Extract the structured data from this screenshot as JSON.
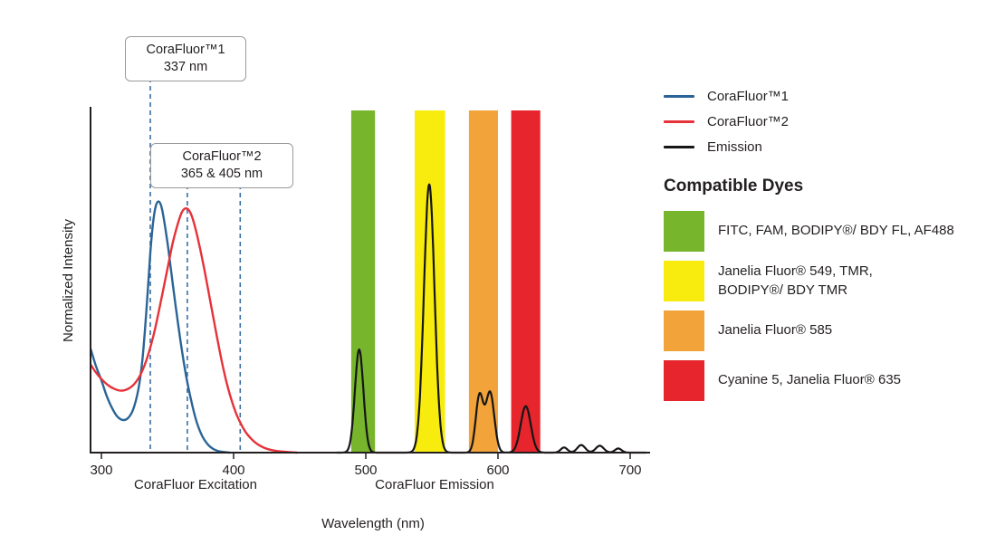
{
  "chart_data": {
    "type": "line",
    "title": "",
    "xlabel": "Wavelength (nm)",
    "ylabel": "Normalized Intensity",
    "x_ticks": [
      300,
      400,
      500,
      600,
      700
    ],
    "x_range": [
      292,
      715
    ],
    "y_range": [
      0,
      1
    ],
    "grid": false,
    "x_group_labels": [
      "CoraFluor Excitation",
      "CoraFluor Emission"
    ],
    "filter_bands": [
      {
        "name": "green",
        "from": 489,
        "to": 507,
        "color": "#77b52d"
      },
      {
        "name": "yellow",
        "from": 537,
        "to": 560,
        "color": "#f8ec0e"
      },
      {
        "name": "orange",
        "from": 578,
        "to": 600,
        "color": "#f2a43b"
      },
      {
        "name": "red",
        "from": 610,
        "to": 632,
        "color": "#e6252c"
      }
    ],
    "series": [
      {
        "name": "CoraFluor™1 excitation",
        "color": "#2a6496",
        "points": [
          [
            292,
            0.3
          ],
          [
            296,
            0.25
          ],
          [
            300,
            0.21
          ],
          [
            304,
            0.165
          ],
          [
            308,
            0.13
          ],
          [
            312,
            0.105
          ],
          [
            316,
            0.095
          ],
          [
            320,
            0.1
          ],
          [
            324,
            0.125
          ],
          [
            328,
            0.185
          ],
          [
            331,
            0.27
          ],
          [
            334,
            0.41
          ],
          [
            337,
            0.58
          ],
          [
            339,
            0.665
          ],
          [
            341,
            0.715
          ],
          [
            343,
            0.73
          ],
          [
            345,
            0.72
          ],
          [
            347,
            0.685
          ],
          [
            350,
            0.61
          ],
          [
            353,
            0.52
          ],
          [
            356,
            0.43
          ],
          [
            360,
            0.32
          ],
          [
            364,
            0.225
          ],
          [
            368,
            0.15
          ],
          [
            372,
            0.09
          ],
          [
            376,
            0.05
          ],
          [
            380,
            0.026
          ],
          [
            384,
            0.012
          ],
          [
            388,
            0.005
          ],
          [
            392,
            0.002
          ],
          [
            397,
            0
          ]
        ]
      },
      {
        "name": "CoraFluor™2 excitation",
        "color": "#e63238",
        "points": [
          [
            292,
            0.255
          ],
          [
            296,
            0.232
          ],
          [
            300,
            0.214
          ],
          [
            305,
            0.196
          ],
          [
            310,
            0.185
          ],
          [
            315,
            0.18
          ],
          [
            320,
            0.185
          ],
          [
            325,
            0.2
          ],
          [
            330,
            0.23
          ],
          [
            335,
            0.28
          ],
          [
            340,
            0.35
          ],
          [
            345,
            0.44
          ],
          [
            350,
            0.535
          ],
          [
            354,
            0.61
          ],
          [
            358,
            0.668
          ],
          [
            361,
            0.7
          ],
          [
            364,
            0.71
          ],
          [
            367,
            0.7
          ],
          [
            370,
            0.668
          ],
          [
            374,
            0.605
          ],
          [
            378,
            0.53
          ],
          [
            382,
            0.448
          ],
          [
            386,
            0.365
          ],
          [
            390,
            0.285
          ],
          [
            394,
            0.215
          ],
          [
            398,
            0.158
          ],
          [
            402,
            0.113
          ],
          [
            406,
            0.08
          ],
          [
            410,
            0.055
          ],
          [
            415,
            0.034
          ],
          [
            420,
            0.02
          ],
          [
            426,
            0.01
          ],
          [
            432,
            0.005
          ],
          [
            440,
            0.002
          ],
          [
            448,
            0
          ]
        ]
      },
      {
        "name": "Emission",
        "color": "#161616",
        "sample_range": [
          478,
          712
        ],
        "peaks": [
          {
            "center": 495,
            "sigma": 3.2,
            "amp": 0.3
          },
          {
            "center": 548,
            "sigma": 4.0,
            "amp": 0.78
          },
          {
            "center": 586,
            "sigma": 2.8,
            "amp": 0.165
          },
          {
            "center": 594,
            "sigma": 3.2,
            "amp": 0.175
          },
          {
            "center": 621,
            "sigma": 3.8,
            "amp": 0.135
          },
          {
            "center": 650,
            "sigma": 2.5,
            "amp": 0.015
          },
          {
            "center": 663,
            "sigma": 3.0,
            "amp": 0.022
          },
          {
            "center": 677,
            "sigma": 3.0,
            "amp": 0.02
          },
          {
            "center": 691,
            "sigma": 2.5,
            "amp": 0.012
          }
        ]
      }
    ],
    "annotations": [
      {
        "title": "CoraFluor™1",
        "subtitle": "337 nm",
        "wavelengths": [
          337
        ]
      },
      {
        "title": "CoraFluor™2",
        "subtitle": "365 & 405 nm",
        "wavelengths": [
          365,
          405
        ]
      }
    ],
    "annotation_line_color": "#3a6ea5"
  },
  "legend": {
    "items": [
      {
        "label": "CoraFluor™1",
        "color": "#2a6496"
      },
      {
        "label": "CoraFluor™2",
        "color": "#e63238"
      },
      {
        "label": "Emission",
        "color": "#161616"
      }
    ]
  },
  "compatible_dyes": {
    "heading": "Compatible Dyes",
    "items": [
      {
        "dyes": "FITC, FAM, BODIPY®/ BDY FL, AF488",
        "color": "#77b52d"
      },
      {
        "dyes": "Janelia Fluor® 549, TMR,\nBODIPY®/ BDY TMR",
        "color": "#f8ec0e"
      },
      {
        "dyes": "Janelia Fluor® 585",
        "color": "#f2a43b"
      },
      {
        "dyes": "Cyanine 5, Janelia Fluor® 635",
        "color": "#e6252c"
      }
    ]
  }
}
